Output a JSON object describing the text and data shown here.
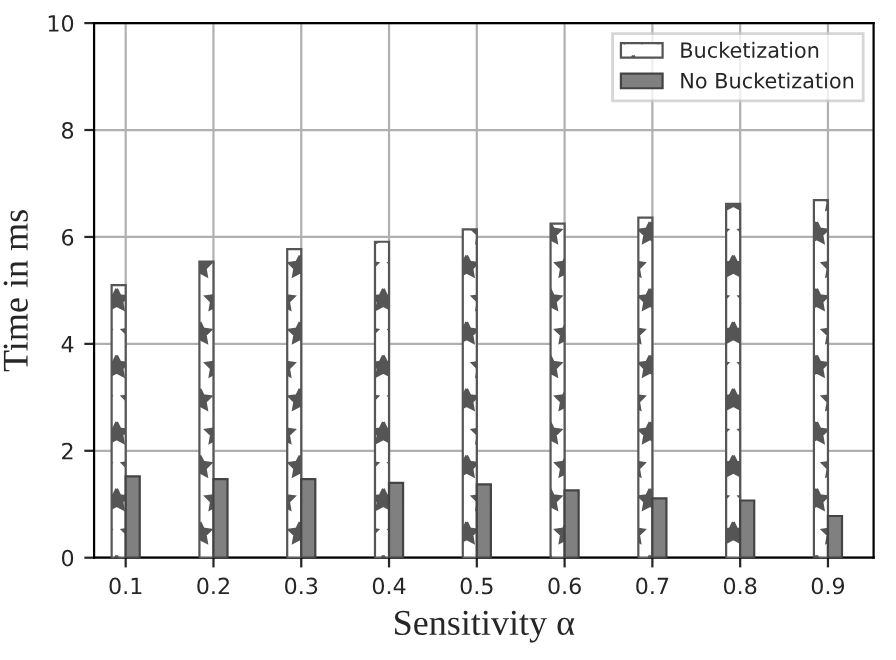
{
  "chart_data": {
    "type": "bar",
    "xlabel": "Sensitivity α",
    "ylabel": "Time in ms",
    "x": [
      0.1,
      0.2,
      0.3,
      0.4,
      0.5,
      0.6,
      0.7,
      0.8,
      0.9
    ],
    "series": [
      {
        "name": "Bucketization",
        "color": "#555555",
        "values": [
          5.1,
          5.54,
          5.77,
          5.91,
          6.14,
          6.25,
          6.36,
          6.62,
          6.69
        ]
      },
      {
        "name": "No Bucketization",
        "color": "#808080",
        "values": [
          1.52,
          1.47,
          1.47,
          1.4,
          1.37,
          1.26,
          1.11,
          1.07,
          0.78
        ]
      }
    ],
    "xlim": [
      0.064,
      0.952
    ],
    "xticks": [
      0.1,
      0.2,
      0.3,
      0.4,
      0.5,
      0.6,
      0.7,
      0.8,
      0.9
    ],
    "ylim": [
      0,
      10
    ],
    "yticks": [
      0,
      2,
      4,
      6,
      8,
      10
    ],
    "grid": true,
    "legend": "top right"
  }
}
